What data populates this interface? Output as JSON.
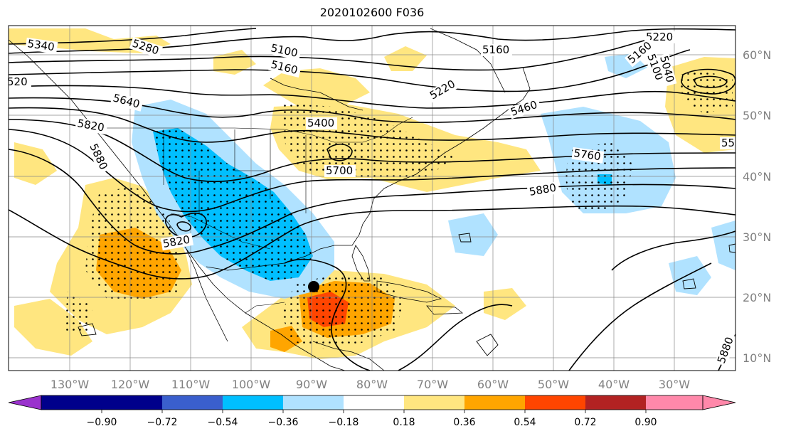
{
  "title": "2020102600 F036",
  "lon_labels": [
    "130°W",
    "120°W",
    "110°W",
    "100°W",
    "90°W",
    "80°W",
    "70°W",
    "60°W",
    "50°W",
    "40°W",
    "30°W"
  ],
  "lat_labels": [
    "60°N",
    "50°N",
    "40°N",
    "30°N",
    "20°N",
    "10°N"
  ],
  "colorbar": {
    "ticks": [
      "−0.90",
      "−0.72",
      "−0.54",
      "−0.36",
      "−0.18",
      "0.18",
      "0.36",
      "0.54",
      "0.72",
      "0.90"
    ],
    "colors": [
      "#9a32cd",
      "#00008b",
      "#3a5fcd",
      "#00bfff",
      "#b0e2ff",
      "#ffffff",
      "#ffe680",
      "#ffa500",
      "#ff4500",
      "#b22222",
      "#ff88aa"
    ]
  },
  "contour_labels": [
    "5340",
    "5280",
    "5100",
    "5160",
    "5160",
    "5220",
    "5160",
    "5100",
    "5040",
    "520",
    "5640",
    "5820",
    "5880",
    "5400",
    "5460",
    "5220",
    "5760",
    "5880",
    "5880",
    "55",
    "5700",
    "5820"
  ],
  "marker": "storm-center"
}
